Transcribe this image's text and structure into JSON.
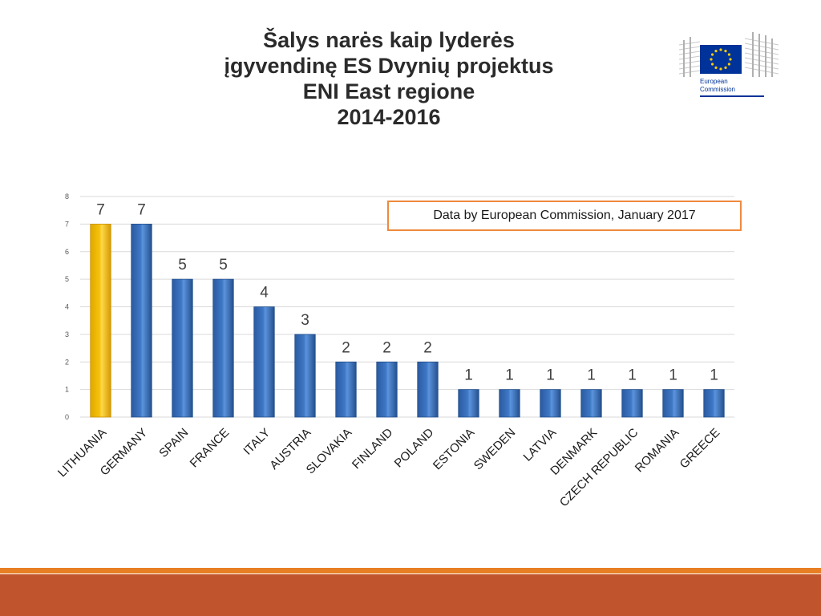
{
  "title_lines": [
    "Šalys narės kaip lyderės",
    "įgyvendinę ES Dvynių projektus",
    "ENI East regione",
    "2014-2016"
  ],
  "source_note": "Data by European Commission, January 2017",
  "logo": {
    "text_line1": "European",
    "text_line2": "Commission"
  },
  "colors": {
    "bar": "#3f78c6",
    "bar_highlight": "#f6c20c",
    "grid": "#d9d9d9",
    "accent_orange": "#e87f24",
    "footer": "#c0552d",
    "eu_blue": "#003399",
    "eu_star": "#ffcc00"
  },
  "chart_data": {
    "type": "bar",
    "title": "Šalys narės kaip lyderės įgyvendinę ES Dvynių projektus ENI East regione 2014-2016",
    "categories": [
      "LITHUANIA",
      "GERMANY",
      "SPAIN",
      "FRANCE",
      "ITALY",
      "AUSTRIA",
      "SLOVAKIA",
      "FINLAND",
      "POLAND",
      "ESTONIA",
      "SWEDEN",
      "LATVIA",
      "DENMARK",
      "CZECH REPUBLIC",
      "ROMANIA",
      "GREECE"
    ],
    "values": [
      7,
      7,
      5,
      5,
      4,
      3,
      2,
      2,
      2,
      1,
      1,
      1,
      1,
      1,
      1,
      1
    ],
    "highlight_index": 0,
    "yticks": [
      0,
      1,
      2,
      3,
      4,
      5,
      6,
      7,
      8
    ],
    "ylim": [
      0,
      8
    ],
    "xlabel": "",
    "ylabel": "",
    "grid": true,
    "data_labels": true
  }
}
